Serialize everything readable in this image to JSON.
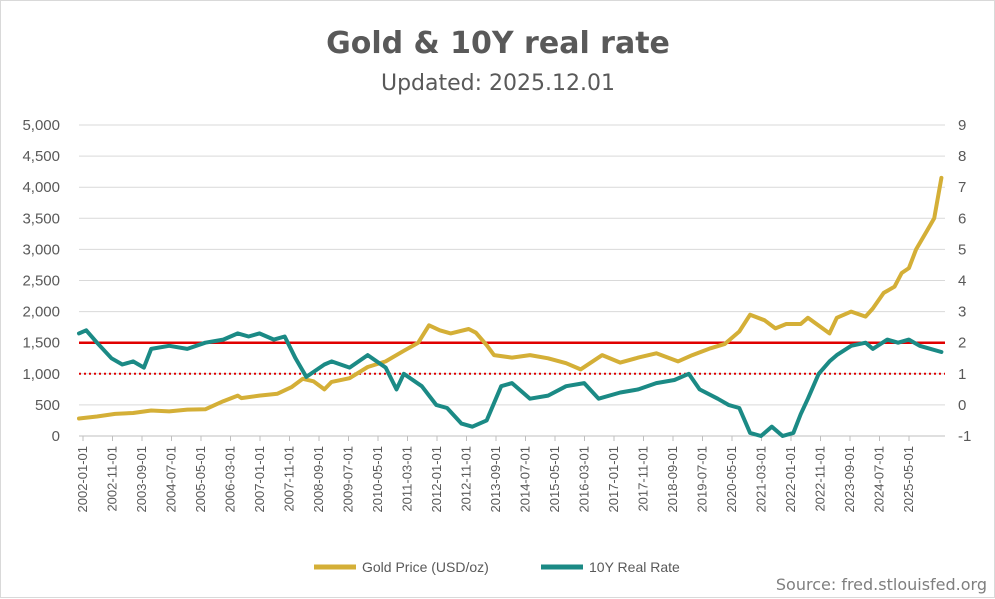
{
  "chart_data": {
    "type": "line",
    "title": "Gold & 10Y real rate",
    "subtitle": "Updated: 2025.12.01",
    "source": "Source: fred.stlouisfed.org",
    "colors": {
      "gold": "#d4af37",
      "rate": "#1b8a85",
      "ref_solid": "#e00000",
      "ref_dotted": "#e00000",
      "grid": "#d9d9d9",
      "text": "#595959"
    },
    "y_left": {
      "min": 0,
      "max": 5000,
      "ticks": [
        0,
        500,
        1000,
        1500,
        2000,
        2500,
        3000,
        3500,
        4000,
        4500,
        5000
      ],
      "tick_labels": [
        "0",
        "500",
        "1,000",
        "1,500",
        "2,000",
        "2,500",
        "3,000",
        "3,500",
        "4,000",
        "4,500",
        "5,000"
      ]
    },
    "y_right": {
      "min": -1,
      "max": 9,
      "ticks": [
        -1,
        0,
        1,
        2,
        3,
        4,
        5,
        6,
        7,
        8,
        9
      ],
      "tick_labels": [
        "-1",
        "0",
        "1",
        "2",
        "3",
        "4",
        "5",
        "6",
        "7",
        "8",
        "9"
      ]
    },
    "x_range": [
      2002.0,
      2026.0
    ],
    "x_tick_labels": [
      "2002-01-01",
      "2002-11-01",
      "2003-09-01",
      "2004-07-01",
      "2005-05-01",
      "2006-03-01",
      "2007-01-01",
      "2007-11-01",
      "2008-09-01",
      "2009-07-01",
      "2010-05-01",
      "2011-03-01",
      "2012-01-01",
      "2012-11-01",
      "2013-09-01",
      "2014-07-01",
      "2015-05-01",
      "2016-03-01",
      "2017-01-01",
      "2017-11-01",
      "2018-09-01",
      "2019-07-01",
      "2020-05-01",
      "2021-03-01",
      "2022-01-01",
      "2022-11-01",
      "2023-09-01",
      "2024-07-01",
      "2025-05-01"
    ],
    "reference_lines": [
      {
        "name": "2% real rate line",
        "axis": "right",
        "value": 2,
        "style": "solid"
      },
      {
        "name": "1% real rate line",
        "axis": "right",
        "value": 1,
        "style": "dotted"
      }
    ],
    "series": [
      {
        "name": "Gold Price (USD/oz)",
        "axis": "left",
        "x": [
          2002.0,
          2002.5,
          2003.0,
          2003.5,
          2004.0,
          2004.5,
          2005.0,
          2005.5,
          2006.0,
          2006.4,
          2006.5,
          2007.0,
          2007.5,
          2007.9,
          2008.2,
          2008.5,
          2008.8,
          2009.0,
          2009.5,
          2010.0,
          2010.5,
          2011.0,
          2011.4,
          2011.7,
          2012.0,
          2012.3,
          2012.8,
          2013.0,
          2013.3,
          2013.5,
          2014.0,
          2014.5,
          2015.0,
          2015.5,
          2015.9,
          2016.5,
          2017.0,
          2017.5,
          2018.0,
          2018.6,
          2019.0,
          2019.5,
          2019.9,
          2020.3,
          2020.6,
          2021.0,
          2021.3,
          2021.6,
          2022.0,
          2022.2,
          2022.8,
          2023.0,
          2023.4,
          2023.8,
          2024.0,
          2024.3,
          2024.6,
          2024.8,
          2025.0,
          2025.2,
          2025.5,
          2025.7,
          2025.9
        ],
        "values": [
          282,
          313,
          356,
          370,
          410,
          395,
          425,
          430,
          560,
          650,
          610,
          650,
          680,
          790,
          920,
          880,
          750,
          870,
          930,
          1110,
          1200,
          1370,
          1500,
          1780,
          1700,
          1650,
          1720,
          1660,
          1460,
          1300,
          1260,
          1300,
          1250,
          1170,
          1070,
          1300,
          1180,
          1260,
          1330,
          1200,
          1300,
          1410,
          1480,
          1680,
          1950,
          1860,
          1730,
          1800,
          1800,
          1900,
          1650,
          1900,
          2000,
          1920,
          2050,
          2300,
          2400,
          2620,
          2700,
          3000,
          3300,
          3500,
          4150
        ]
      },
      {
        "name": "10Y Real Rate",
        "axis": "right",
        "x": [
          2002.0,
          2002.2,
          2002.5,
          2002.9,
          2003.2,
          2003.5,
          2003.8,
          2004.0,
          2004.5,
          2005.0,
          2005.5,
          2006.0,
          2006.4,
          2006.7,
          2007.0,
          2007.4,
          2007.7,
          2008.0,
          2008.3,
          2008.8,
          2009.0,
          2009.5,
          2010.0,
          2010.5,
          2010.8,
          2011.0,
          2011.5,
          2011.9,
          2012.2,
          2012.6,
          2012.9,
          2013.3,
          2013.7,
          2014.0,
          2014.5,
          2015.0,
          2015.5,
          2016.0,
          2016.4,
          2017.0,
          2017.5,
          2018.0,
          2018.5,
          2018.9,
          2019.2,
          2019.7,
          2020.0,
          2020.3,
          2020.6,
          2020.9,
          2021.2,
          2021.5,
          2021.8,
          2022.0,
          2022.2,
          2022.5,
          2022.8,
          2023.0,
          2023.4,
          2023.8,
          2024.0,
          2024.4,
          2024.7,
          2025.0,
          2025.3,
          2025.6,
          2025.9
        ],
        "values": [
          2.3,
          2.4,
          2.0,
          1.5,
          1.3,
          1.4,
          1.2,
          1.8,
          1.9,
          1.8,
          2.0,
          2.1,
          2.3,
          2.2,
          2.3,
          2.1,
          2.2,
          1.5,
          0.9,
          1.3,
          1.4,
          1.2,
          1.6,
          1.2,
          0.5,
          1.0,
          0.6,
          0.0,
          -0.1,
          -0.6,
          -0.7,
          -0.5,
          0.6,
          0.7,
          0.2,
          0.3,
          0.6,
          0.7,
          0.2,
          0.4,
          0.5,
          0.7,
          0.8,
          1.0,
          0.5,
          0.2,
          0.0,
          -0.1,
          -0.9,
          -1.0,
          -0.7,
          -1.0,
          -0.9,
          -0.3,
          0.2,
          1.0,
          1.4,
          1.6,
          1.9,
          2.0,
          1.8,
          2.1,
          2.0,
          2.1,
          1.9,
          1.8,
          1.7
        ]
      }
    ]
  }
}
